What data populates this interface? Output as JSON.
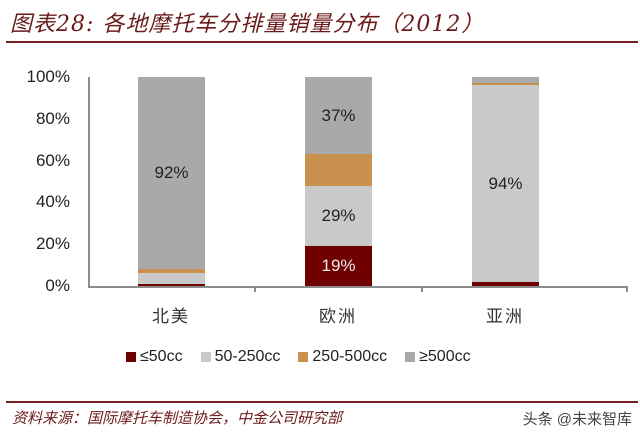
{
  "header": {
    "title": "图表28: 各地摩托车分排量销量分布（2012）"
  },
  "footer": {
    "source": "资料来源：国际摩托车制造协会，中金公司研究部",
    "watermark": "头条 @未来智库"
  },
  "colors": {
    "le50cc": "#6e0000",
    "cc50_250": "#c9c9c9",
    "cc250_500": "#c8924e",
    "ge500cc": "#a9a9a9",
    "title_red": "#6b1a1a"
  },
  "chart_data": {
    "type": "bar",
    "stacked": true,
    "percent_stacked": true,
    "title": "各地摩托车分排量销量分布（2012）",
    "xlabel": "",
    "ylabel": "",
    "ylim": [
      0,
      100
    ],
    "yticks": [
      "0%",
      "20%",
      "40%",
      "60%",
      "80%",
      "100%"
    ],
    "categories": [
      "北美",
      "欧洲",
      "亚洲"
    ],
    "series": [
      {
        "name": "≤50cc",
        "color": "#6e0000",
        "values": [
          1,
          19,
          2
        ]
      },
      {
        "name": "50-250cc",
        "color": "#c9c9c9",
        "values": [
          5,
          29,
          94
        ]
      },
      {
        "name": "250-500cc",
        "color": "#c8924e",
        "values": [
          2,
          15,
          1
        ]
      },
      {
        "name": "≥500cc",
        "color": "#a9a9a9",
        "values": [
          92,
          37,
          3
        ]
      }
    ],
    "data_labels": [
      {
        "category": "北美",
        "series": "≥500cc",
        "text": "92%"
      },
      {
        "category": "欧洲",
        "series": "≥500cc",
        "text": "37%"
      },
      {
        "category": "欧洲",
        "series": "50-250cc",
        "text": "29%"
      },
      {
        "category": "欧洲",
        "series": "≤50cc",
        "text": "19%"
      },
      {
        "category": "亚洲",
        "series": "50-250cc",
        "text": "94%"
      }
    ],
    "grid": false,
    "legend_position": "bottom"
  },
  "axis": {
    "yticks": [
      "100%",
      "80%",
      "60%",
      "40%",
      "20%",
      "0%"
    ]
  },
  "bars": [
    {
      "label": "北美",
      "segments": [
        {
          "name": "le50",
          "value": 1,
          "label": ""
        },
        {
          "name": "cc50_250",
          "value": 5,
          "label": ""
        },
        {
          "name": "cc250_500",
          "value": 2,
          "label": ""
        },
        {
          "name": "ge500",
          "value": 92,
          "label": "92%"
        }
      ]
    },
    {
      "label": "欧洲",
      "segments": [
        {
          "name": "le50",
          "value": 19,
          "label": "19%"
        },
        {
          "name": "cc50_250",
          "value": 29,
          "label": "29%"
        },
        {
          "name": "cc250_500",
          "value": 15,
          "label": ""
        },
        {
          "name": "ge500",
          "value": 37,
          "label": "37%"
        }
      ]
    },
    {
      "label": "亚洲",
      "segments": [
        {
          "name": "le50",
          "value": 2,
          "label": ""
        },
        {
          "name": "cc50_250",
          "value": 94,
          "label": "94%"
        },
        {
          "name": "cc250_500",
          "value": 1,
          "label": ""
        },
        {
          "name": "ge500",
          "value": 3,
          "label": ""
        }
      ]
    }
  ],
  "legend": [
    {
      "label": "≤50cc",
      "color": "#6e0000"
    },
    {
      "label": "50-250cc",
      "color": "#c9c9c9"
    },
    {
      "label": "250-500cc",
      "color": "#c8924e"
    },
    {
      "label": "≥500cc",
      "color": "#a9a9a9"
    }
  ]
}
